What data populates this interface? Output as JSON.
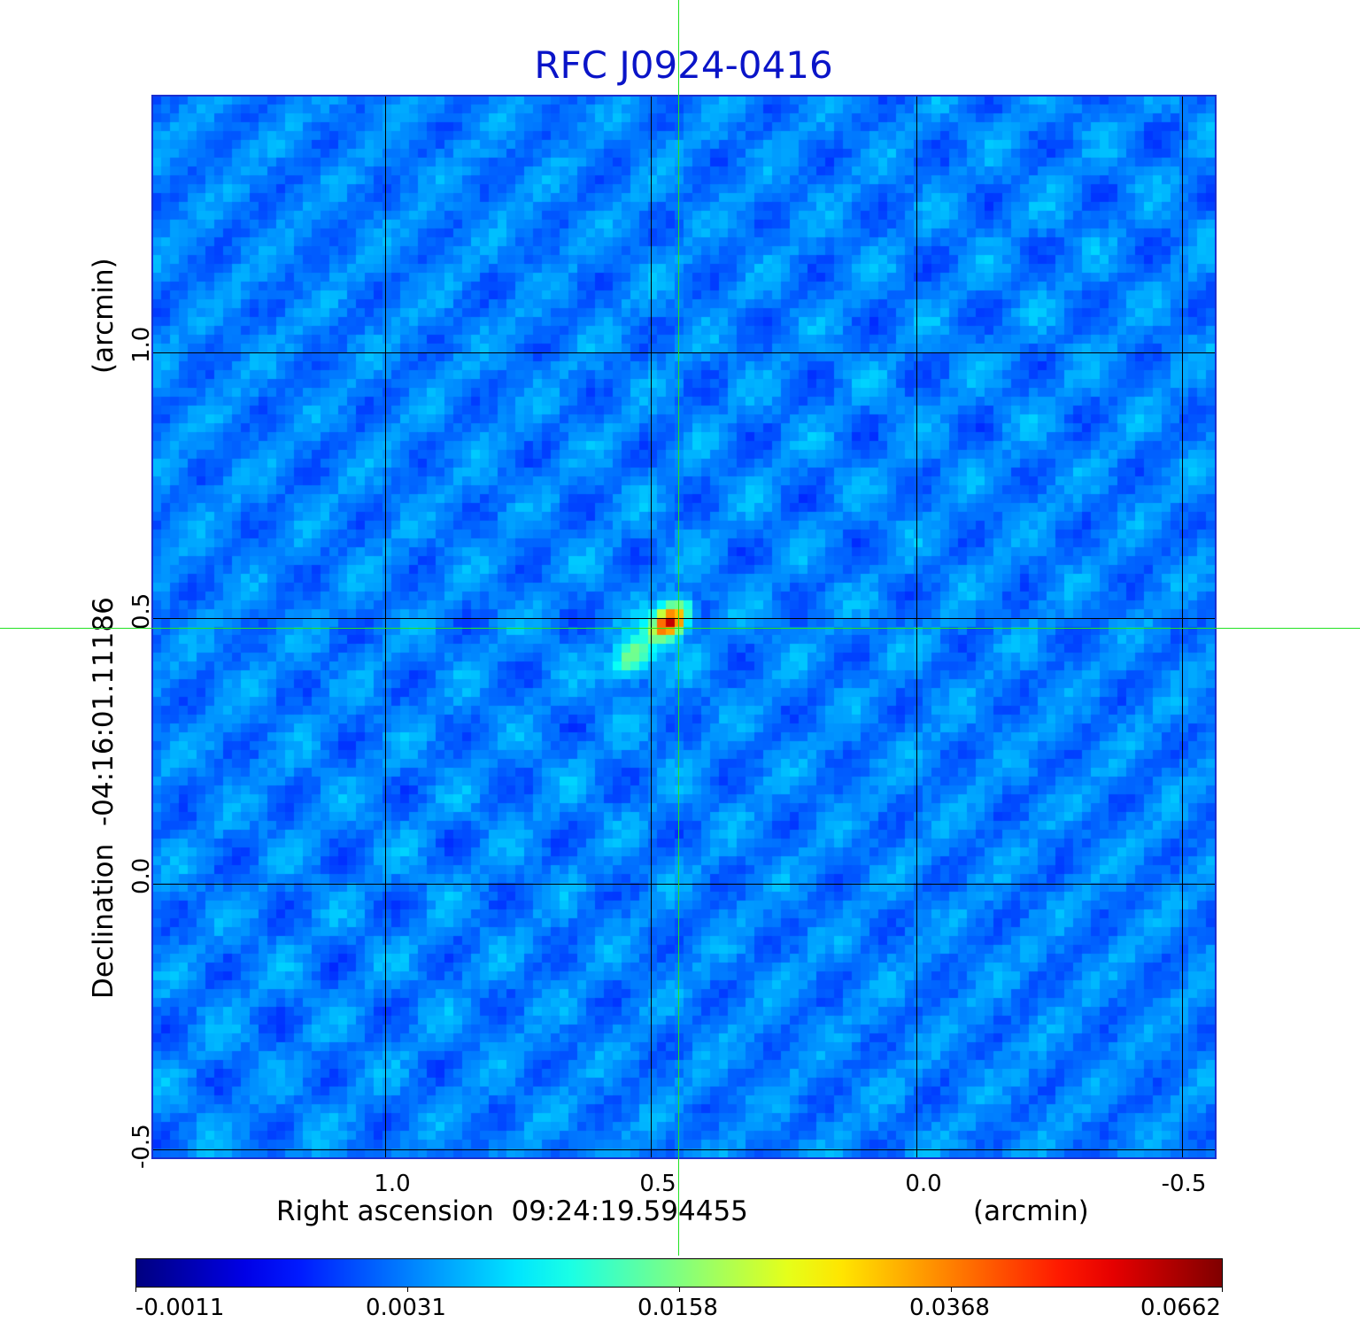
{
  "chart_data": {
    "type": "heatmap",
    "title": "RFC J0924-0416",
    "xlabel": "Right ascension  09:24:19.594455",
    "xunit": "(arcmin)",
    "ylabel": "Declination  -04:16:01.11186",
    "yunit": "(arcmin)",
    "x_ticks": [
      "1.0",
      "0.5",
      "0.0",
      "-0.5"
    ],
    "y_ticks": [
      "-0.5",
      "0.0",
      "0.5",
      "1.0"
    ],
    "xlim": [
      1.44,
      -0.57
    ],
    "ylim": [
      -0.52,
      1.48
    ],
    "grid": true,
    "crosshair": {
      "ra_offset": 0.45,
      "dec_offset": 0.48
    },
    "peak": {
      "ra_offset": 0.46,
      "dec_offset": 0.49,
      "value": 0.0662
    },
    "colorbar": {
      "colormap": "jet",
      "ticks": [
        "-0.0011",
        "0.0031",
        "0.0158",
        "0.0368",
        "0.0662"
      ]
    }
  },
  "colors": {
    "title": "#0a14c8",
    "crosshair": "#22e222",
    "frame": "#1b2fd0"
  }
}
